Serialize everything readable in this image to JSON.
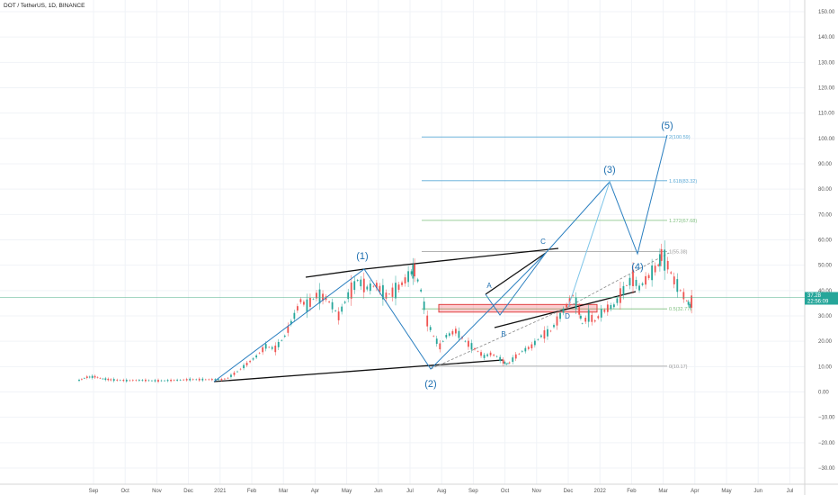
{
  "header": {
    "title": "DOT / TetherUS, 1D, BINANCE"
  },
  "chart_data": {
    "type": "line",
    "title": "DOT / TetherUS, 1D, BINANCE",
    "ylim": [
      -35,
      155
    ],
    "y_ticks": [
      150,
      140,
      130,
      120,
      110,
      100,
      90,
      80,
      70,
      60,
      50,
      40,
      30,
      20,
      10,
      0,
      -10,
      -20,
      -30
    ],
    "y_tick_labels": [
      "150.00",
      "140.00",
      "130.00",
      "120.00",
      "110.00",
      "100.00",
      "90.00",
      "80.00",
      "70.00",
      "60.00",
      "50.00",
      "40.00",
      "30.00",
      "20.00",
      "10.00",
      "0.00",
      "−10.00",
      "−20.00",
      "−30.00"
    ],
    "x_ticks": [
      "Sep",
      "Oct",
      "Nov",
      "Dec",
      "2021",
      "Feb",
      "Mar",
      "Apr",
      "May",
      "Jun",
      "Jul",
      "Aug",
      "Sep",
      "Oct",
      "Nov",
      "Dec",
      "2022",
      "Feb",
      "Mar",
      "Apr",
      "May",
      "Jun",
      "Jul"
    ],
    "xlim": [
      0,
      27
    ],
    "current_price": {
      "value": 37.28,
      "label": "37.28",
      "countdown": "22:56:09"
    },
    "price_path": [
      [
        0,
        4.6
      ],
      [
        0.25,
        5.8
      ],
      [
        0.5,
        6.0
      ],
      [
        0.75,
        5.2
      ],
      [
        1,
        4.8
      ],
      [
        1.5,
        4.5
      ],
      [
        2,
        4.6
      ],
      [
        2.5,
        4.4
      ],
      [
        3,
        4.6
      ],
      [
        3.5,
        4.9
      ],
      [
        4,
        4.9
      ],
      [
        4.5,
        4.9
      ],
      [
        4.7,
        5.5
      ],
      [
        5,
        8
      ],
      [
        5.3,
        11
      ],
      [
        5.6,
        14
      ],
      [
        5.9,
        18
      ],
      [
        6.2,
        17
      ],
      [
        6.5,
        22
      ],
      [
        6.8,
        30
      ],
      [
        7.0,
        36
      ],
      [
        7.2,
        34
      ],
      [
        7.5,
        38
      ],
      [
        7.8,
        37
      ],
      [
        8.0,
        34
      ],
      [
        8.2,
        30
      ],
      [
        8.5,
        38
      ],
      [
        8.8,
        44
      ],
      [
        9.1,
        41
      ],
      [
        9.4,
        42
      ],
      [
        9.7,
        38
      ],
      [
        10.0,
        40
      ],
      [
        10.3,
        44
      ],
      [
        10.5,
        47
      ],
      [
        10.6,
        48
      ],
      [
        10.8,
        40
      ],
      [
        11.0,
        28
      ],
      [
        11.2,
        22
      ],
      [
        11.4,
        18
      ],
      [
        11.6,
        22
      ],
      [
        11.9,
        24
      ],
      [
        12.2,
        20
      ],
      [
        12.5,
        17
      ],
      [
        12.8,
        14
      ],
      [
        13.0,
        15
      ],
      [
        13.2,
        14
      ],
      [
        13.4,
        12
      ],
      [
        13.5,
        11
      ],
      [
        13.6,
        11.5
      ],
      [
        13.8,
        14
      ],
      [
        14.0,
        16
      ],
      [
        14.3,
        18
      ],
      [
        14.6,
        22
      ],
      [
        14.9,
        24
      ],
      [
        15.2,
        30
      ],
      [
        15.4,
        34
      ],
      [
        15.6,
        38
      ],
      [
        15.8,
        32
      ],
      [
        15.9,
        27
      ],
      [
        16.1,
        30
      ],
      [
        16.3,
        28
      ],
      [
        16.5,
        31
      ],
      [
        16.7,
        33
      ],
      [
        16.9,
        34
      ],
      [
        17.1,
        38
      ],
      [
        17.3,
        42
      ],
      [
        17.5,
        45
      ],
      [
        17.7,
        41
      ],
      [
        17.9,
        44
      ],
      [
        18.1,
        47
      ],
      [
        18.3,
        50
      ],
      [
        18.4,
        54
      ],
      [
        18.6,
        50
      ],
      [
        18.8,
        44
      ],
      [
        19.0,
        40
      ],
      [
        19.2,
        36
      ],
      [
        19.3,
        34
      ],
      [
        19.4,
        37.28
      ]
    ],
    "fib_levels": [
      {
        "label": "2(100.59)",
        "value": 100.59,
        "color": "#5aa9d6"
      },
      {
        "label": "1.618(83.32)",
        "value": 83.32,
        "color": "#5aa9d6"
      },
      {
        "label": "1.272(67.68)",
        "value": 67.68,
        "color": "#7fbf7f"
      },
      {
        "label": "1(55.38)",
        "value": 55.38,
        "color": "#999999"
      },
      {
        "label": "0.5(32.77)",
        "value": 32.77,
        "color": "#7fbf7f"
      },
      {
        "label": "0(10.17)",
        "value": 10.17,
        "color": "#999999"
      }
    ],
    "wave_labels": [
      {
        "text": "(1)",
        "x": 10.7,
        "y": 53
      },
      {
        "text": "(2)",
        "x": 13.5,
        "y": 2
      },
      {
        "text": "(3)",
        "x": 19.3,
        "y": 88
      },
      {
        "text": "(4)",
        "x": 20.0,
        "y": 48
      },
      {
        "text": "(5)",
        "x": 21.0,
        "y": 106
      }
    ],
    "sub_labels": [
      {
        "text": "A",
        "x": 15.5,
        "y": 42
      },
      {
        "text": "B",
        "x": 15.8,
        "y": 22
      },
      {
        "text": "C",
        "x": 17.3,
        "y": 58
      },
      {
        "text": "D",
        "x": 17.9,
        "y": 28
      }
    ]
  }
}
